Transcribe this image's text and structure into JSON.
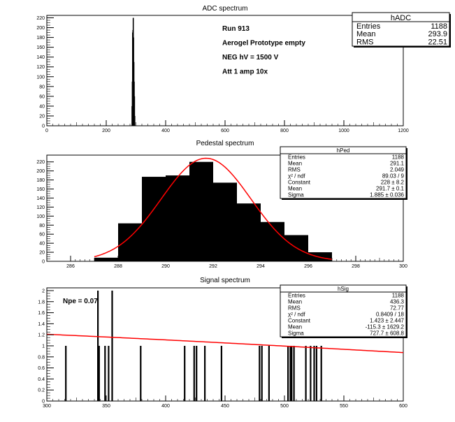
{
  "chart_data": [
    {
      "type": "bar",
      "title": "ADC spectrum",
      "xlabel": "",
      "ylabel": "",
      "xlim": [
        0,
        1200
      ],
      "ylim": [
        0,
        225
      ],
      "x_ticks": [
        0,
        200,
        400,
        600,
        800,
        1000,
        1200
      ],
      "y_ticks": [
        0,
        20,
        40,
        60,
        80,
        100,
        120,
        140,
        160,
        180,
        200,
        220
      ],
      "bars": [
        {
          "x": 287,
          "y": 40
        },
        {
          "x": 288,
          "y": 90
        },
        {
          "x": 289,
          "y": 190
        },
        {
          "x": 290,
          "y": 195
        },
        {
          "x": 291,
          "y": 220
        },
        {
          "x": 292,
          "y": 180
        },
        {
          "x": 293,
          "y": 130
        },
        {
          "x": 294,
          "y": 90
        },
        {
          "x": 295,
          "y": 60
        },
        {
          "x": 296,
          "y": 20
        }
      ],
      "annotations": [
        "Run  913",
        "Aerogel Prototype empty",
        "NEG hV = 1500 V",
        "Att 1 amp 10x"
      ],
      "stats_box": {
        "name": "hADC",
        "rows": [
          {
            "label": "Entries",
            "value": "1188"
          },
          {
            "label": "Mean",
            "value": "293.9"
          },
          {
            "label": "RMS",
            "value": "22.51"
          }
        ]
      }
    },
    {
      "type": "bar",
      "title": "Pedestal spectrum",
      "xlabel": "",
      "ylabel": "",
      "xlim": [
        285,
        300
      ],
      "ylim": [
        0,
        235
      ],
      "x_ticks": [
        286,
        288,
        290,
        292,
        294,
        296,
        298,
        300
      ],
      "y_ticks": [
        0,
        20,
        40,
        60,
        80,
        100,
        120,
        140,
        160,
        180,
        200,
        220
      ],
      "bins": [
        {
          "x0": 287,
          "x1": 288,
          "y": 8
        },
        {
          "x0": 288,
          "x1": 289,
          "y": 84
        },
        {
          "x0": 289,
          "x1": 290,
          "y": 187
        },
        {
          "x0": 290,
          "x1": 291,
          "y": 190
        },
        {
          "x0": 291,
          "x1": 292,
          "y": 220
        },
        {
          "x0": 292,
          "x1": 293,
          "y": 174
        },
        {
          "x0": 293,
          "x1": 294,
          "y": 128
        },
        {
          "x0": 294,
          "x1": 295,
          "y": 87
        },
        {
          "x0": 295,
          "x1": 296,
          "y": 58
        },
        {
          "x0": 296,
          "x1": 297,
          "y": 20
        }
      ],
      "fit": {
        "type": "gaussian",
        "constant": 228,
        "mean": 291.7,
        "sigma": 1.885,
        "range": [
          287,
          297
        ],
        "color": "#ff0000"
      },
      "stats_box": {
        "name": "hPed",
        "rows": [
          {
            "label": "Entries",
            "value": "1188"
          },
          {
            "label": "Mean",
            "value": "291.1"
          },
          {
            "label": "RMS",
            "value": "2.049"
          },
          {
            "label": "χ² / ndf",
            "value": "89.03 / 9"
          },
          {
            "label": "Constant",
            "value": "228 ± 8.2"
          },
          {
            "label": "Mean",
            "value": "291.7 ± 0.1"
          },
          {
            "label": "Sigma",
            "value": "1.885 ± 0.036"
          }
        ]
      }
    },
    {
      "type": "bar",
      "title": "Signal spectrum",
      "xlabel": "",
      "ylabel": "",
      "xlim": [
        300,
        600
      ],
      "ylim": [
        0,
        2.05
      ],
      "x_ticks": [
        300,
        350,
        400,
        450,
        500,
        550,
        600
      ],
      "y_ticks": [
        0,
        0.2,
        0.4,
        0.6,
        0.8,
        1,
        1.2,
        1.4,
        1.6,
        1.8,
        2
      ],
      "bars": [
        {
          "x": 316,
          "y": 1
        },
        {
          "x": 343,
          "y": 2
        },
        {
          "x": 344,
          "y": 1
        },
        {
          "x": 349,
          "y": 1
        },
        {
          "x": 352,
          "y": 1
        },
        {
          "x": 355,
          "y": 2
        },
        {
          "x": 379,
          "y": 1
        },
        {
          "x": 416,
          "y": 1
        },
        {
          "x": 424,
          "y": 1
        },
        {
          "x": 426,
          "y": 1
        },
        {
          "x": 433,
          "y": 1
        },
        {
          "x": 447,
          "y": 1
        },
        {
          "x": 479,
          "y": 1
        },
        {
          "x": 481,
          "y": 1
        },
        {
          "x": 487,
          "y": 1
        },
        {
          "x": 503,
          "y": 1
        },
        {
          "x": 505,
          "y": 1
        },
        {
          "x": 506,
          "y": 1
        },
        {
          "x": 508,
          "y": 1
        },
        {
          "x": 518,
          "y": 1
        },
        {
          "x": 522,
          "y": 1
        },
        {
          "x": 525,
          "y": 1
        },
        {
          "x": 527,
          "y": 1
        },
        {
          "x": 531,
          "y": 1
        }
      ],
      "fit": {
        "type": "gaussian",
        "constant": 1.423,
        "mean": -115.3,
        "sigma": 727.7,
        "range": [
          300,
          600
        ],
        "color": "#ff0000"
      },
      "annotations": [
        "Npe = 0.07"
      ],
      "stats_box": {
        "name": "hSig",
        "rows": [
          {
            "label": "Entries",
            "value": "1188"
          },
          {
            "label": "Mean",
            "value": "436.3"
          },
          {
            "label": "RMS",
            "value": "72.77"
          },
          {
            "label": "χ² / ndf",
            "value": "0.8409 / 18"
          },
          {
            "label": "Constant",
            "value": "1.423 ± 2.447"
          },
          {
            "label": "Mean",
            "value": "-115.3 ± 1629.2"
          },
          {
            "label": "Sigma",
            "value": "727.7 ± 608.8"
          }
        ]
      }
    }
  ]
}
